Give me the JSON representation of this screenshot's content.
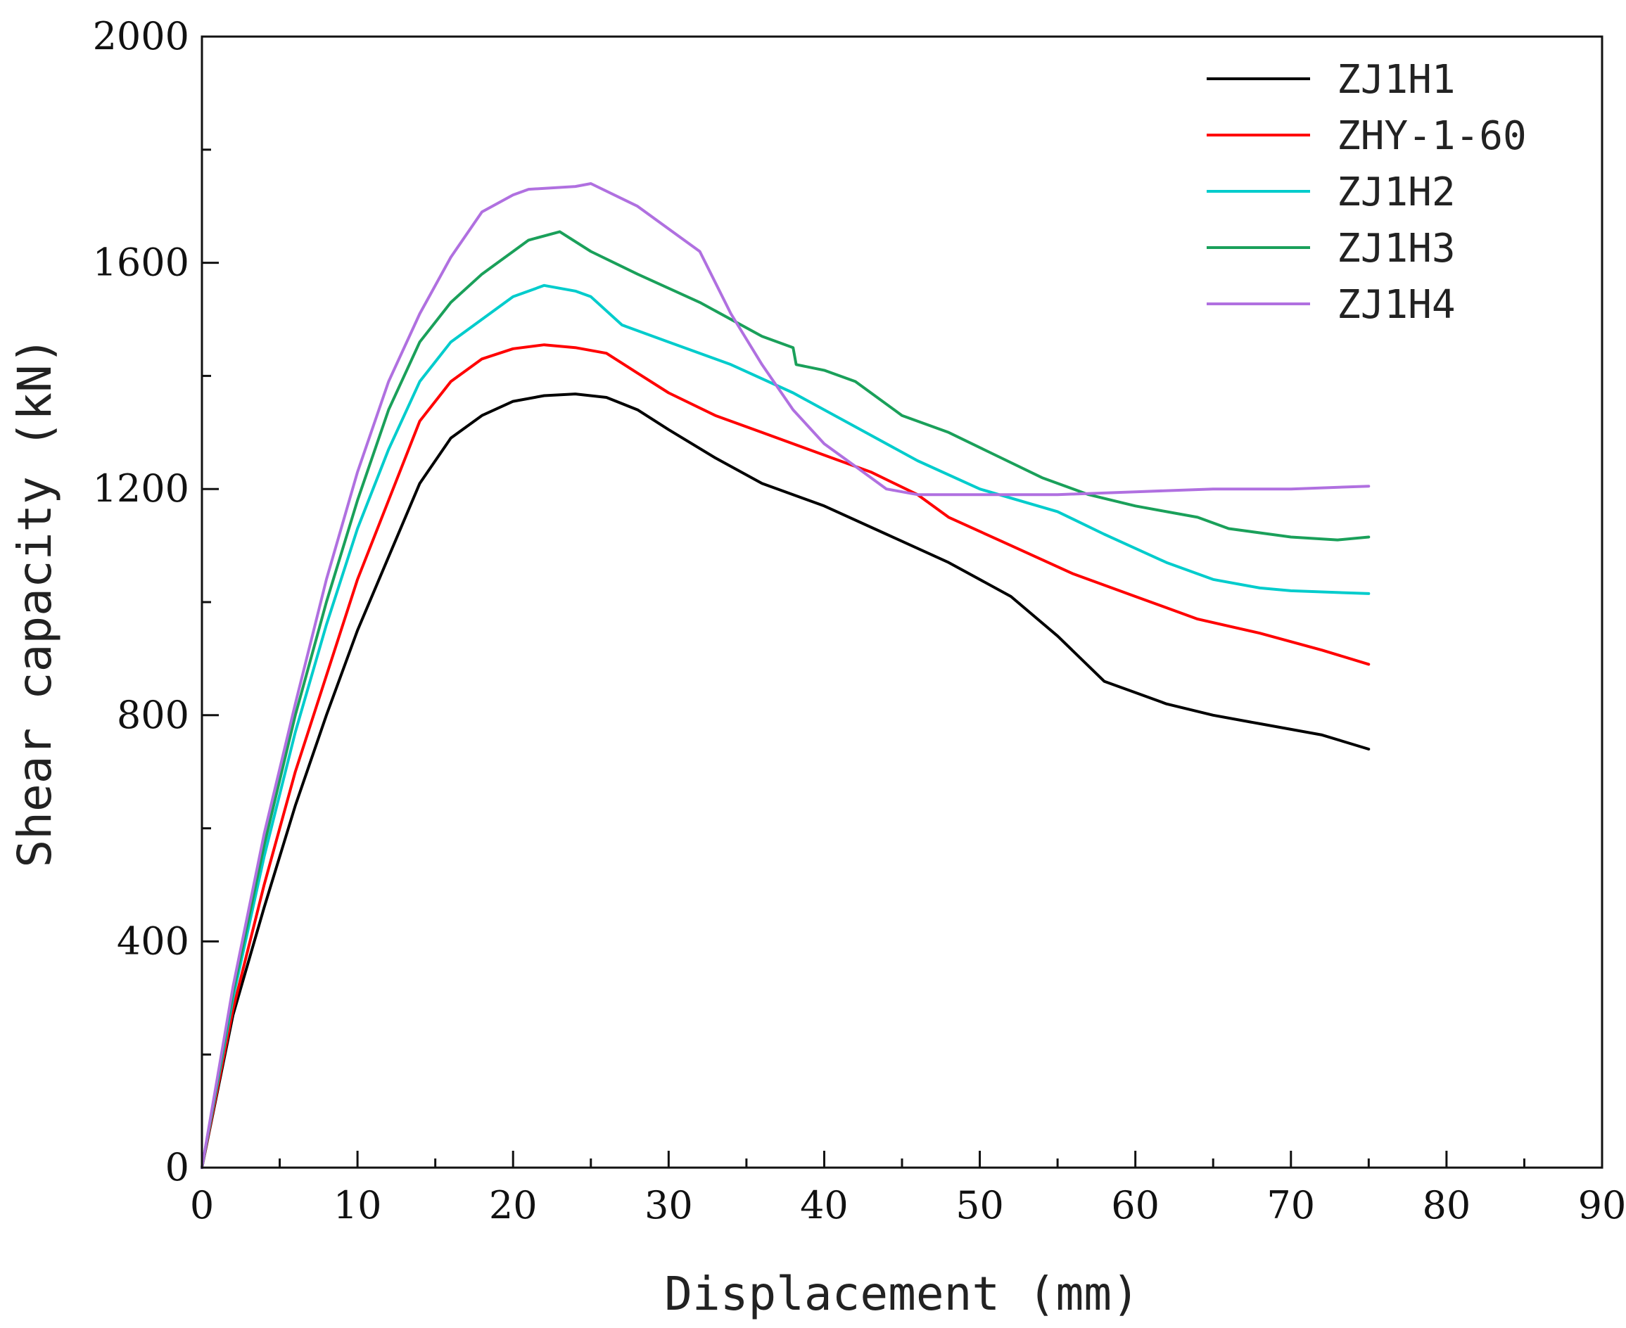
{
  "chart_data": {
    "type": "line",
    "title": "",
    "xlabel": "Displacement (mm)",
    "ylabel": "Shear capacity (kN)",
    "xlim": [
      0,
      90
    ],
    "ylim": [
      0,
      2000
    ],
    "xticks": [
      0,
      10,
      20,
      30,
      40,
      50,
      60,
      70,
      80,
      90
    ],
    "xtick_labels": [
      "0",
      "10",
      "20",
      "30",
      "40",
      "50",
      "60",
      "70",
      "80",
      "90"
    ],
    "yticks": [
      0,
      400,
      800,
      1200,
      1600,
      2000
    ],
    "ytick_labels": [
      "0",
      "400",
      "800",
      "1200",
      "1600",
      "2000"
    ],
    "grid": false,
    "legend_position": "top-right",
    "series": [
      {
        "name": "ZJ1H1",
        "color": "#000000",
        "x": [
          0,
          2,
          4,
          6,
          8,
          10,
          12,
          14,
          15,
          16,
          18,
          20,
          22,
          24,
          26,
          28,
          30,
          33,
          36,
          40,
          44,
          48,
          52,
          55,
          58,
          60,
          62,
          65,
          68,
          72,
          75
        ],
        "y": [
          0,
          270,
          460,
          640,
          800,
          950,
          1080,
          1210,
          1250,
          1290,
          1330,
          1355,
          1365,
          1368,
          1362,
          1340,
          1305,
          1255,
          1210,
          1170,
          1120,
          1070,
          1010,
          940,
          860,
          840,
          820,
          800,
          785,
          765,
          740
        ]
      },
      {
        "name": "ZHY-1-60",
        "color": "#ff0000",
        "x": [
          0,
          2,
          4,
          6,
          8,
          10,
          12,
          14,
          16,
          18,
          20,
          22,
          24,
          26,
          28,
          30,
          33,
          36,
          40,
          43,
          46,
          48,
          52,
          56,
          60,
          64,
          68,
          72,
          75
        ],
        "y": [
          0,
          280,
          500,
          700,
          870,
          1040,
          1180,
          1320,
          1390,
          1430,
          1448,
          1455,
          1450,
          1440,
          1405,
          1370,
          1330,
          1300,
          1260,
          1230,
          1190,
          1150,
          1100,
          1050,
          1010,
          970,
          945,
          915,
          890
        ]
      },
      {
        "name": "ZJ1H2",
        "color": "#00cccc",
        "x": [
          0,
          2,
          4,
          6,
          8,
          10,
          12,
          14,
          16,
          18,
          20,
          22,
          24,
          25,
          27,
          30,
          34,
          38,
          42,
          46,
          50,
          55,
          58,
          62,
          65,
          68,
          70,
          75
        ],
        "y": [
          0,
          300,
          550,
          770,
          960,
          1130,
          1270,
          1390,
          1460,
          1500,
          1540,
          1560,
          1550,
          1540,
          1490,
          1460,
          1420,
          1370,
          1310,
          1250,
          1200,
          1160,
          1120,
          1070,
          1040,
          1025,
          1020,
          1015
        ]
      },
      {
        "name": "ZJ1H3",
        "color": "#1aa05a",
        "x": [
          0,
          2,
          4,
          6,
          8,
          10,
          12,
          14,
          16,
          18,
          20,
          21,
          23,
          25,
          28,
          32,
          36,
          38,
          38.2,
          40,
          42,
          45,
          48,
          51,
          54,
          57,
          60,
          62,
          64,
          66,
          70,
          73,
          75
        ],
        "y": [
          0,
          310,
          570,
          800,
          1000,
          1180,
          1340,
          1460,
          1530,
          1580,
          1620,
          1640,
          1655,
          1620,
          1580,
          1530,
          1470,
          1450,
          1420,
          1410,
          1390,
          1330,
          1300,
          1260,
          1220,
          1190,
          1170,
          1160,
          1150,
          1130,
          1115,
          1110,
          1115
        ]
      },
      {
        "name": "ZJ1H4",
        "color": "#b070e0",
        "x": [
          0,
          2,
          4,
          6,
          8,
          10,
          12,
          14,
          16,
          18,
          20,
          21,
          24,
          25,
          28,
          30,
          32,
          34,
          36,
          38,
          40,
          42,
          44,
          46,
          50,
          55,
          60,
          65,
          70,
          75
        ],
        "y": [
          0,
          320,
          590,
          820,
          1040,
          1230,
          1390,
          1510,
          1610,
          1690,
          1720,
          1730,
          1735,
          1740,
          1700,
          1660,
          1620,
          1510,
          1420,
          1340,
          1280,
          1240,
          1200,
          1190,
          1190,
          1190,
          1195,
          1200,
          1200,
          1205
        ]
      }
    ]
  }
}
